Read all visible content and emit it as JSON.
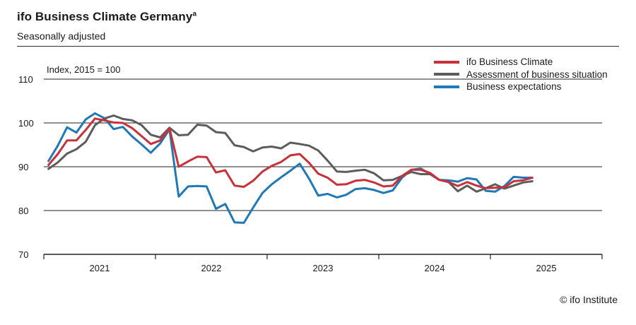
{
  "header": {
    "title": "ifo Business Climate Germany",
    "title_superscript": "a",
    "subtitle": "Seasonally adjusted"
  },
  "credit": "© ifo Institute",
  "chart_data": {
    "type": "line",
    "y_unit_label": "Index, 2015 = 100",
    "ylim": [
      70,
      110
    ],
    "yticks": [
      70,
      80,
      90,
      100,
      110
    ],
    "grid": true,
    "legend_position": "top-right",
    "x_range": [
      "2021-01",
      "2025-12"
    ],
    "year_labels": [
      "2021",
      "2022",
      "2023",
      "2024",
      "2025"
    ],
    "x": [
      "2021-01",
      "2021-02",
      "2021-03",
      "2021-04",
      "2021-05",
      "2021-06",
      "2021-07",
      "2021-08",
      "2021-09",
      "2021-10",
      "2021-11",
      "2021-12",
      "2022-01",
      "2022-02",
      "2022-03",
      "2022-04",
      "2022-05",
      "2022-06",
      "2022-07",
      "2022-08",
      "2022-09",
      "2022-10",
      "2022-11",
      "2022-12",
      "2023-01",
      "2023-02",
      "2023-03",
      "2023-04",
      "2023-05",
      "2023-06",
      "2023-07",
      "2023-08",
      "2023-09",
      "2023-10",
      "2023-11",
      "2023-12",
      "2024-01",
      "2024-02",
      "2024-03",
      "2024-04",
      "2024-05",
      "2024-06",
      "2024-07",
      "2024-08",
      "2024-09",
      "2024-10",
      "2024-11",
      "2024-12",
      "2025-01",
      "2025-02",
      "2025-03",
      "2025-04",
      "2025-05"
    ],
    "series": [
      {
        "name": "ifo Business Climate",
        "color": "#c8313a",
        "values": [
          90.4,
          92.9,
          96.0,
          96.0,
          98.4,
          101.0,
          100.6,
          100.1,
          100.0,
          98.8,
          97.0,
          95.2,
          96.0,
          98.8,
          90.0,
          91.2,
          92.3,
          92.2,
          88.7,
          89.2,
          85.7,
          85.4,
          86.8,
          88.9,
          90.2,
          91.1,
          92.6,
          92.9,
          90.9,
          88.4,
          87.5,
          85.9,
          86.0,
          86.8,
          87.0,
          86.4,
          85.5,
          85.7,
          87.9,
          89.3,
          89.3,
          88.6,
          87.0,
          86.5,
          85.6,
          86.5,
          85.7,
          85.1,
          85.2,
          85.3,
          86.7,
          86.9,
          87.5
        ]
      },
      {
        "name": "Assessment of business situation",
        "color": "#5c5c5c",
        "values": [
          89.5,
          91.0,
          93.0,
          94.0,
          95.7,
          99.5,
          101.0,
          101.7,
          100.9,
          100.6,
          99.5,
          97.3,
          96.7,
          98.9,
          97.2,
          97.3,
          99.6,
          99.4,
          97.9,
          97.7,
          94.9,
          94.5,
          93.5,
          94.4,
          94.6,
          94.2,
          95.5,
          95.2,
          94.8,
          93.7,
          91.4,
          88.9,
          88.8,
          89.1,
          89.3,
          88.5,
          86.9,
          87.0,
          87.9,
          88.8,
          88.3,
          88.3,
          87.0,
          86.5,
          84.4,
          85.7,
          84.3,
          85.1,
          86.0,
          85.0,
          85.7,
          86.4,
          86.7
        ]
      },
      {
        "name": "Business expectations",
        "color": "#1f78b8",
        "values": [
          91.3,
          94.8,
          99.0,
          97.8,
          100.8,
          102.2,
          101.1,
          98.6,
          99.1,
          96.9,
          95.1,
          93.2,
          95.3,
          98.5,
          83.2,
          85.5,
          85.6,
          85.5,
          80.4,
          81.5,
          77.3,
          77.2,
          80.7,
          84.0,
          86.0,
          87.6,
          89.1,
          90.7,
          87.3,
          83.4,
          83.8,
          83.0,
          83.6,
          84.9,
          85.1,
          84.7,
          84.0,
          84.6,
          87.5,
          89.3,
          89.6,
          88.4,
          87.0,
          86.9,
          86.6,
          87.4,
          87.1,
          84.5,
          84.3,
          85.6,
          87.7,
          87.5,
          87.5
        ]
      }
    ]
  }
}
